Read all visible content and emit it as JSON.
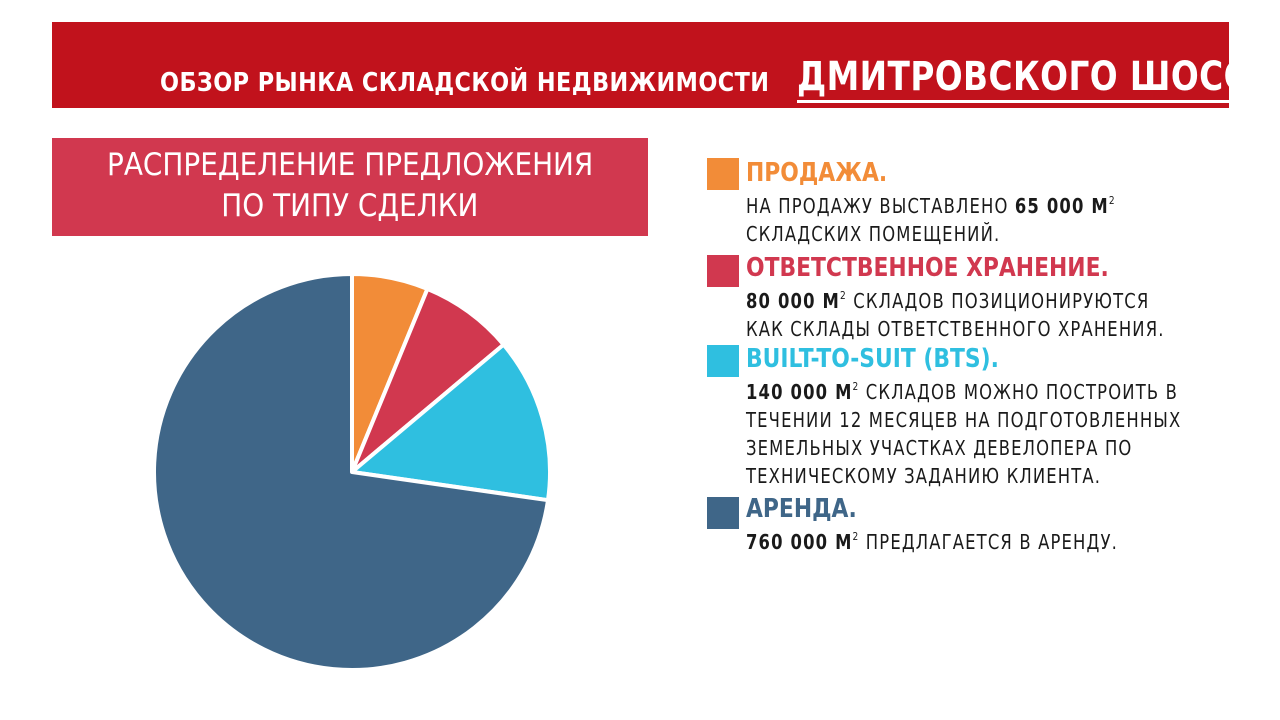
{
  "header": {
    "title_prefix": "ОБЗОР РЫНКА СКЛАДСКОЙ НЕДВИЖИМОСТИ",
    "title_highlight": "ДМИТРОВСКОГО ШОССЕ",
    "background": "#c1121c"
  },
  "subtitle": {
    "line1": "РАСПРЕДЕЛЕНИЕ ПРЕДЛОЖЕНИЯ",
    "line2": "ПО ТИПУ СДЕЛКИ",
    "background": "#d1384f"
  },
  "legend": [
    {
      "key": "sale",
      "color": "#f28c38",
      "heading": "ПРОДАЖА.",
      "lines": [
        {
          "before": "НА ПРОДАЖУ ВЫСТАВЛЕНО ",
          "bold": "65 000 М",
          "sup": "2",
          "after": ""
        },
        {
          "before": "СКЛАДСКИХ ПОМЕЩЕНИЙ.",
          "bold": "",
          "sup": "",
          "after": ""
        }
      ]
    },
    {
      "key": "custody",
      "color": "#d1384f",
      "heading": "ОТВЕТСТВЕННОЕ ХРАНЕНИЕ.",
      "lines": [
        {
          "before": "",
          "bold": "80 000 М",
          "sup": "2",
          "after": " СКЛАДОВ ПОЗИЦИОНИРУЮТСЯ"
        },
        {
          "before": "КАК СКЛАДЫ ОТВЕТСТВЕННОГО ХРАНЕНИЯ.",
          "bold": "",
          "sup": "",
          "after": ""
        }
      ]
    },
    {
      "key": "bts",
      "color": "#2fbfe0",
      "heading": "BUILT-TO-SUIT (BTS).",
      "lines": [
        {
          "before": "",
          "bold": "140 000 М",
          "sup": "2",
          "after": " СКЛАДОВ МОЖНО ПОСТРОИТЬ В"
        },
        {
          "before": "ТЕЧЕНИИ 12 МЕСЯЦЕВ НА ПОДГОТОВЛЕННЫХ",
          "bold": "",
          "sup": "",
          "after": ""
        },
        {
          "before": "ЗЕМЕЛЬНЫХ УЧАСТКАХ ДЕВЕЛОПЕРА ПО",
          "bold": "",
          "sup": "",
          "after": ""
        },
        {
          "before": "ТЕХНИЧЕСКОМУ ЗАДАНИЮ КЛИЕНТА.",
          "bold": "",
          "sup": "",
          "after": ""
        }
      ]
    },
    {
      "key": "rent",
      "color": "#3f6688",
      "heading": "АРЕНДА.",
      "lines": [
        {
          "before": "",
          "bold": "760 000 М",
          "sup": "2",
          "after": " ПРЕДЛАГАЕТСЯ В АРЕНДУ."
        }
      ]
    }
  ],
  "chart_data": {
    "type": "pie",
    "title": "",
    "categories": [
      "ПРОДАЖА.",
      "ОТВЕТСТВЕННОЕ ХРАНЕНИЕ.",
      "BUILT-TO-SUIT (BTS).",
      "АРЕНДА."
    ],
    "values": [
      65000,
      80000,
      140000,
      760000
    ],
    "unit": "М2",
    "colors": [
      "#f28c38",
      "#d1384f",
      "#2fbfe0",
      "#3f6688"
    ],
    "start_angle": "12 o'clock, clockwise"
  }
}
